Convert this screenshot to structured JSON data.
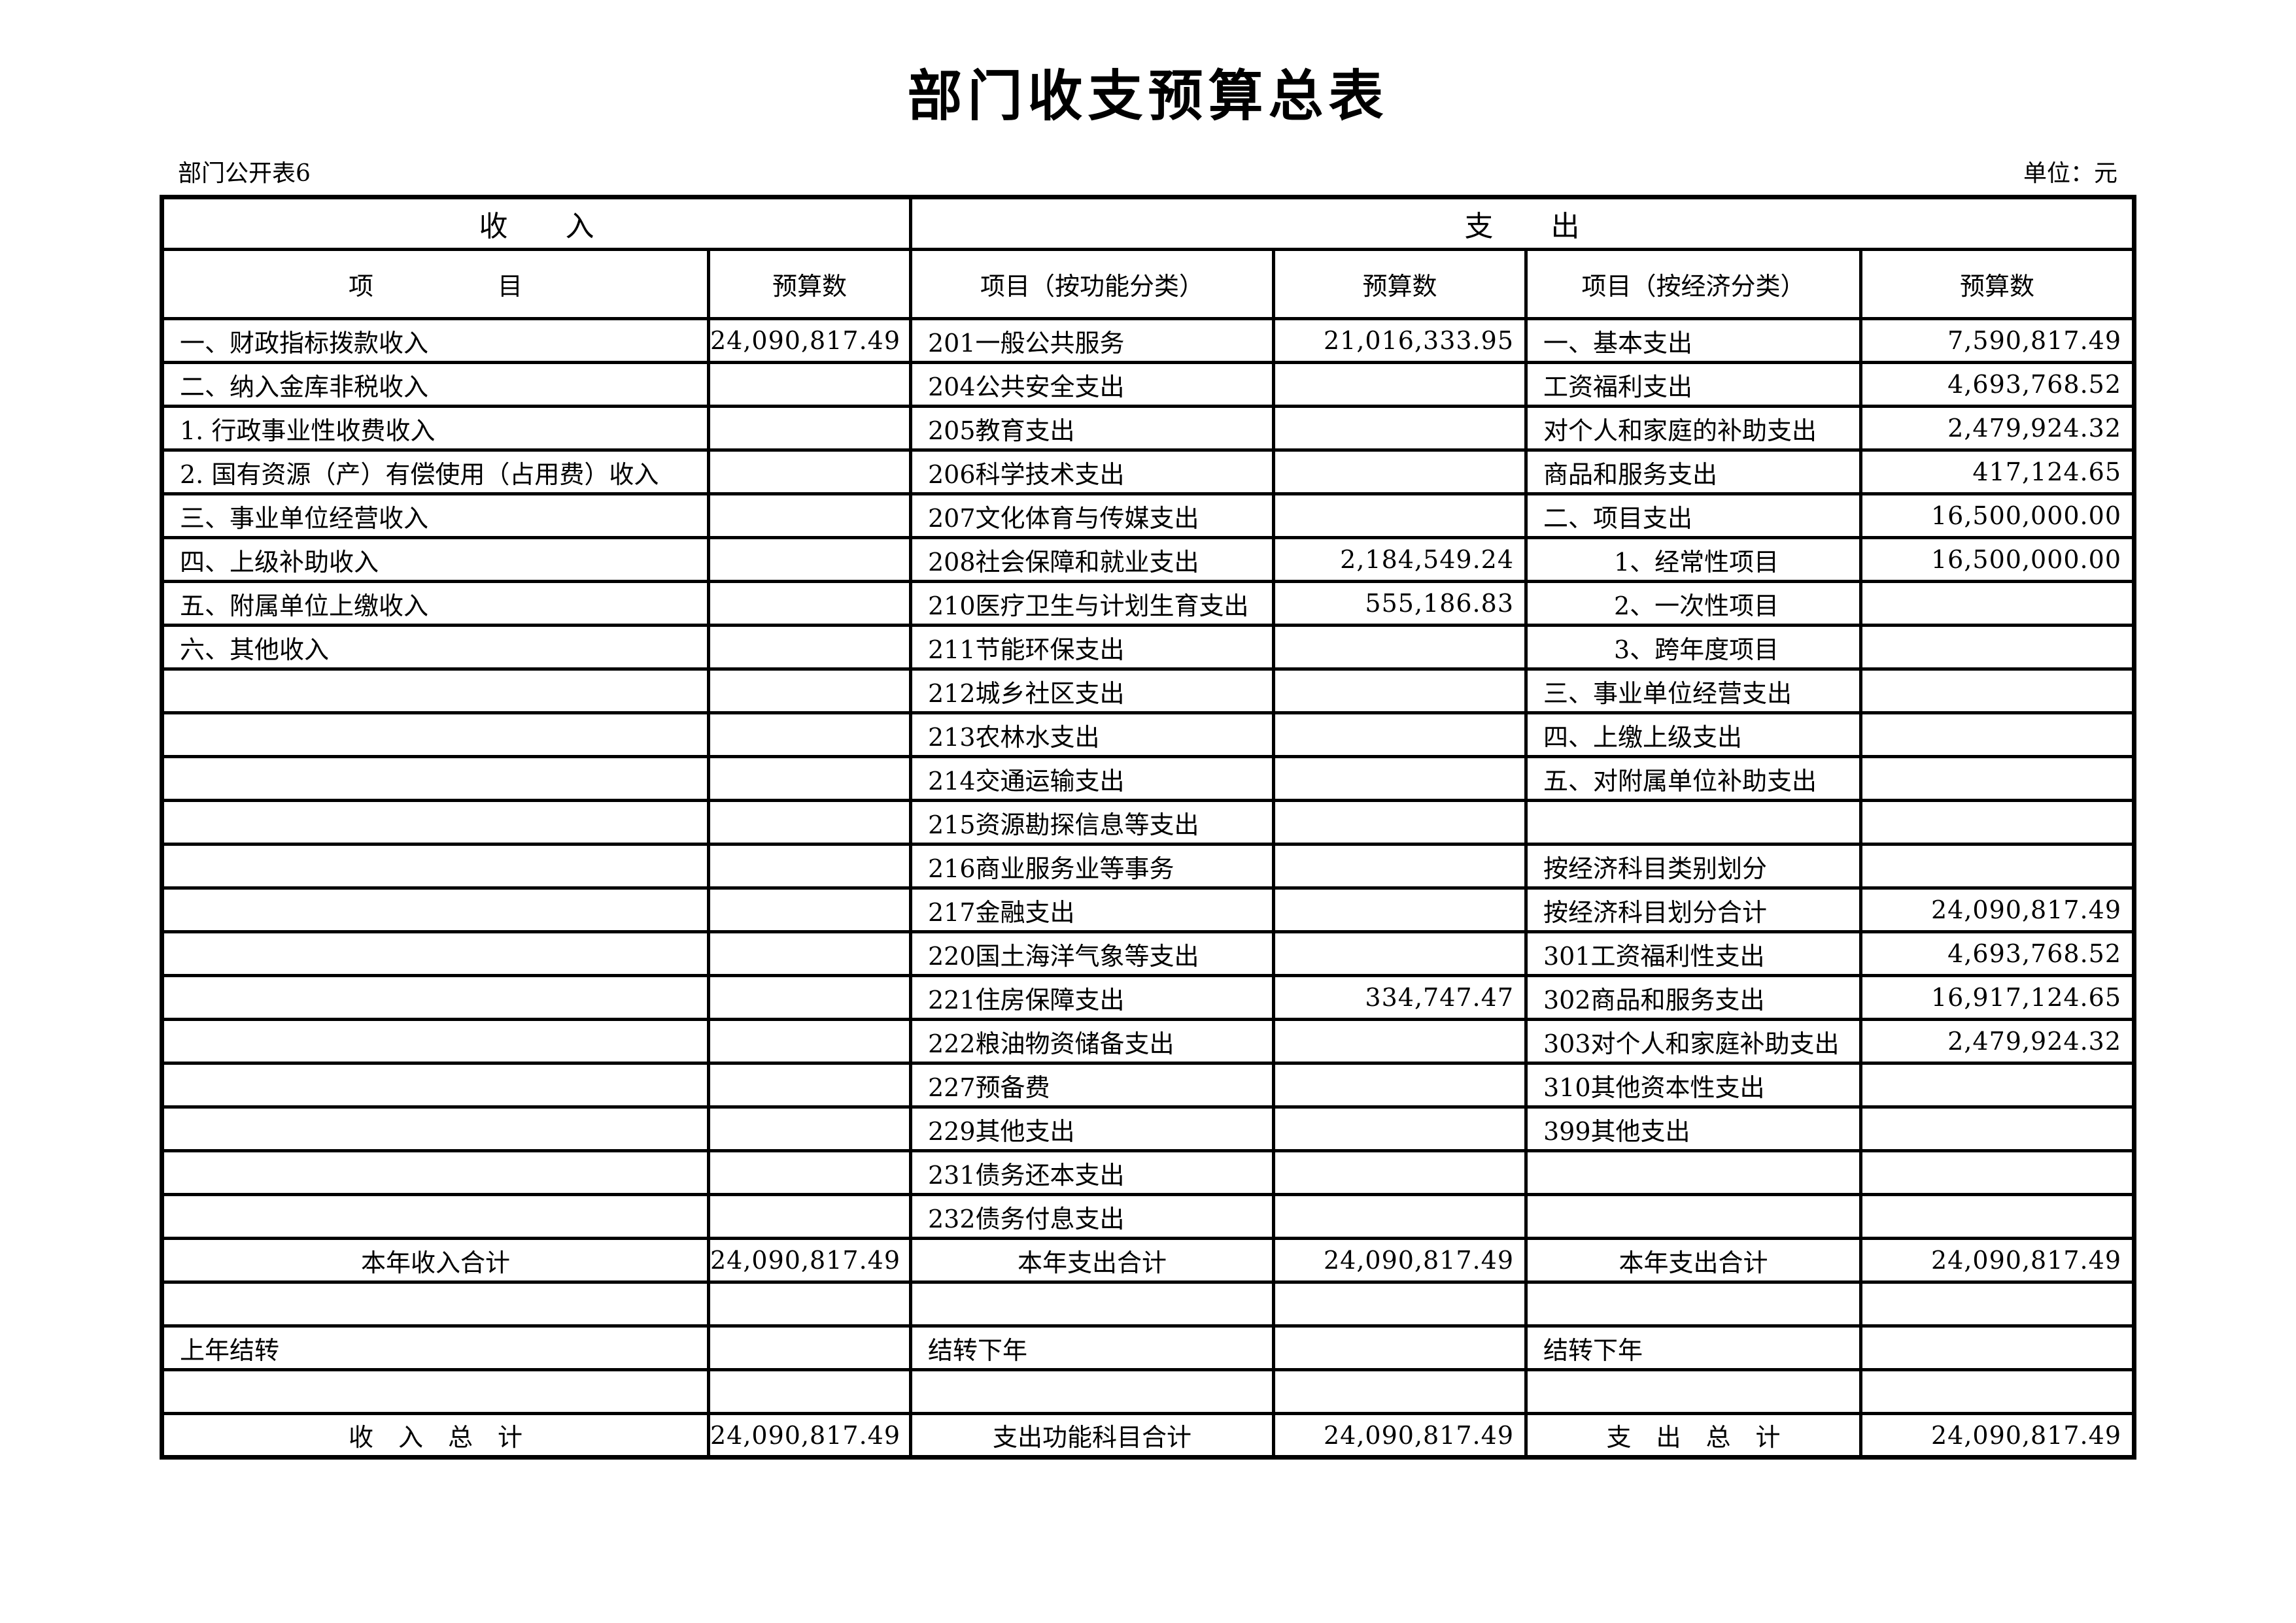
{
  "page_title": "部门收支预算总表",
  "header": {
    "note_left": "部门公开表6",
    "unit_label": "单位：元"
  },
  "table": {
    "section_headers": {
      "income": "收　　入",
      "expense": "支　　出"
    },
    "column_headers": {
      "income_item": "项　　　　　目",
      "income_budget": "预算数",
      "func_item": "项目（按功能分类）",
      "func_budget": "预算数",
      "econ_item": "项目（按经济分类）",
      "econ_budget": "预算数"
    },
    "rows": [
      [
        "一、财政指标拨款收入",
        "24,090,817.49",
        "201一般公共服务",
        "21,016,333.95",
        "一、基本支出",
        "7,590,817.49"
      ],
      [
        "二、纳入金库非税收入",
        "",
        "204公共安全支出",
        "",
        "工资福利支出",
        "4,693,768.52"
      ],
      [
        "1. 行政事业性收费收入",
        "",
        "205教育支出",
        "",
        "对个人和家庭的补助支出",
        "2,479,924.32"
      ],
      [
        "2. 国有资源（产）有偿使用（占用费）收入",
        "",
        "206科学技术支出",
        "",
        "商品和服务支出",
        "417,124.65"
      ],
      [
        "三、事业单位经营收入",
        "",
        "207文化体育与传媒支出",
        "",
        "二、项目支出",
        "16,500,000.00"
      ],
      [
        "四、上级补助收入",
        "",
        "208社会保障和就业支出",
        "2,184,549.24",
        {
          "t": "1、经常性项目",
          "i": true
        },
        "16,500,000.00"
      ],
      [
        "五、附属单位上缴收入",
        "",
        "210医疗卫生与计划生育支出",
        "555,186.83",
        {
          "t": "2、一次性项目",
          "i": true
        },
        ""
      ],
      [
        "六、其他收入",
        "",
        "211节能环保支出",
        "",
        {
          "t": "3、跨年度项目",
          "i": true
        },
        ""
      ],
      [
        "",
        "",
        "212城乡社区支出",
        "",
        "三、事业单位经营支出",
        ""
      ],
      [
        "",
        "",
        "213农林水支出",
        "",
        "四、上缴上级支出",
        ""
      ],
      [
        "",
        "",
        "214交通运输支出",
        "",
        "五、对附属单位补助支出",
        ""
      ],
      [
        "",
        "",
        "215资源勘探信息等支出",
        "",
        "",
        ""
      ],
      [
        "",
        "",
        "216商业服务业等事务",
        "",
        "按经济科目类别划分",
        ""
      ],
      [
        "",
        "",
        "217金融支出",
        "",
        "按经济科目划分合计",
        "24,090,817.49"
      ],
      [
        "",
        "",
        "220国土海洋气象等支出",
        "",
        "301工资福利性支出",
        "4,693,768.52"
      ],
      [
        "",
        "",
        "221住房保障支出",
        "334,747.47",
        "302商品和服务支出",
        "16,917,124.65"
      ],
      [
        "",
        "",
        "222粮油物资储备支出",
        "",
        "303对个人和家庭补助支出",
        "2,479,924.32"
      ],
      [
        "",
        "",
        "227预备费",
        "",
        "310其他资本性支出",
        ""
      ],
      [
        "",
        "",
        "229其他支出",
        "",
        "399其他支出",
        ""
      ],
      [
        "",
        "",
        "231债务还本支出",
        "",
        "",
        ""
      ],
      [
        "",
        "",
        "232债务付息支出",
        "",
        "",
        ""
      ],
      [
        {
          "t": "本年收入合计",
          "c": true
        },
        "24,090,817.49",
        {
          "t": "本年支出合计",
          "c": true
        },
        "24,090,817.49",
        {
          "t": "本年支出合计",
          "c": true
        },
        "24,090,817.49"
      ],
      [
        "",
        "",
        "",
        "",
        "",
        ""
      ],
      [
        "上年结转",
        "",
        "结转下年",
        "",
        "结转下年",
        ""
      ],
      [
        "",
        "",
        "",
        "",
        "",
        ""
      ],
      [
        {
          "t": "收　入　总　计",
          "c": true
        },
        "24,090,817.49",
        {
          "t": "支出功能科目合计",
          "c": true
        },
        "24,090,817.49",
        {
          "t": "支　出　总　计",
          "c": true
        },
        "24,090,817.49"
      ]
    ]
  }
}
